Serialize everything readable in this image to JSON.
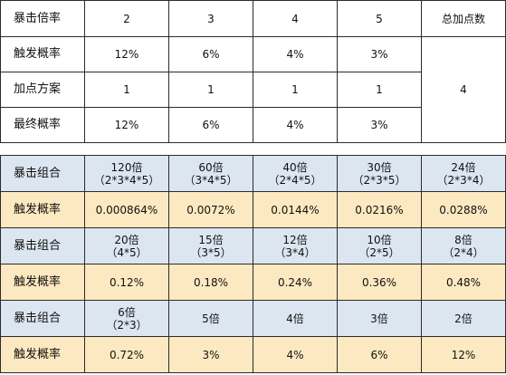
{
  "table1": {
    "rows": [
      {
        "label": "暴击倍率",
        "cells": [
          "2",
          "3",
          "4",
          "5"
        ]
      },
      {
        "label": "触发概率",
        "cells": [
          "12%",
          "6%",
          "4%",
          "3%"
        ]
      },
      {
        "label": "加点方案",
        "cells": [
          "1",
          "1",
          "1",
          "1"
        ]
      },
      {
        "label": "最终概率",
        "cells": [
          "12%",
          "6%",
          "4%",
          "3%"
        ]
      }
    ],
    "total_header": "总加点数",
    "total_value": "4"
  },
  "table2": {
    "groups": [
      {
        "combo_label": "暴击组合",
        "prob_label": "触发概率",
        "combos": [
          {
            "main": "120倍",
            "sub": "（2*3*4*5）"
          },
          {
            "main": "60倍",
            "sub": "（3*4*5）"
          },
          {
            "main": "40倍",
            "sub": "（2*4*5）"
          },
          {
            "main": "30倍",
            "sub": "（2*3*5）"
          },
          {
            "main": "24倍",
            "sub": "（2*3*4）"
          }
        ],
        "probs": [
          "0.000864%",
          "0.0072%",
          "0.0144%",
          "0.0216%",
          "0.0288%"
        ]
      },
      {
        "combo_label": "暴击组合",
        "prob_label": "触发概率",
        "combos": [
          {
            "main": "20倍",
            "sub": "（4*5）"
          },
          {
            "main": "15倍",
            "sub": "（3*5）"
          },
          {
            "main": "12倍",
            "sub": "（3*4）"
          },
          {
            "main": "10倍",
            "sub": "（2*5）"
          },
          {
            "main": "8倍",
            "sub": "（2*4）"
          }
        ],
        "probs": [
          "0.12%",
          "0.18%",
          "0.24%",
          "0.36%",
          "0.48%"
        ]
      },
      {
        "combo_label": "暴击组合",
        "prob_label": "触发概率",
        "combos": [
          {
            "main": "6倍",
            "sub": "（2*3）"
          },
          {
            "main": "5倍",
            "sub": ""
          },
          {
            "main": "4倍",
            "sub": ""
          },
          {
            "main": "3倍",
            "sub": ""
          },
          {
            "main": "2倍",
            "sub": ""
          }
        ],
        "probs": [
          "0.72%",
          "3%",
          "4%",
          "6%",
          "12%"
        ]
      }
    ]
  }
}
